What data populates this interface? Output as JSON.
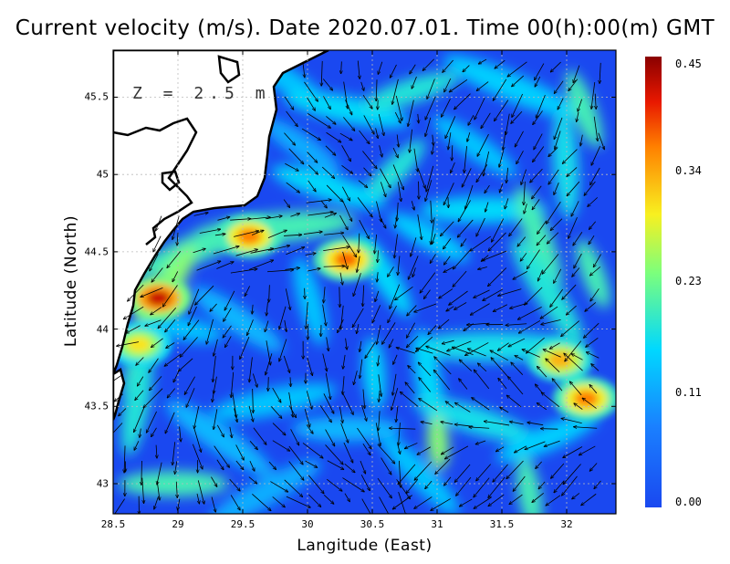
{
  "title": "Current velocity (m/s). Date 2020.07.01. Time 00(h):00(m) GMT",
  "depth_label": "Z = 2.5 m",
  "xlabel": "Langitude (East)",
  "ylabel": "Latitude (North)",
  "x_ticks": [
    "28.5",
    "29",
    "29.5",
    "30",
    "30.5",
    "31",
    "31.5",
    "32"
  ],
  "y_ticks": [
    "43",
    "43.5",
    "44",
    "44.5",
    "45",
    "45.5"
  ],
  "colorbar_ticks": [
    "0.45",
    "0.34",
    "0.23",
    "0.11",
    "0.00"
  ],
  "colors": {
    "low": "#1a48f0",
    "mid_low": "#00c8ff",
    "mid": "#f0f020",
    "high": "#ff5000",
    "max": "#9a0000",
    "land": "#ffffff",
    "coast": "#000000"
  },
  "chart_data": {
    "type": "heatmap",
    "quantity": "Current velocity (m/s)",
    "date": "2020.07.01",
    "time": "00(h):00(m) GMT",
    "depth_m": 2.5,
    "xlim": [
      28.5,
      32.4
    ],
    "ylim": [
      42.8,
      45.8
    ],
    "value_range": [
      0.0,
      0.45
    ],
    "grid": true,
    "hotspots": [
      {
        "lon": 28.85,
        "lat": 44.2,
        "value": 0.42
      },
      {
        "lon": 29.55,
        "lat": 44.6,
        "value": 0.36
      },
      {
        "lon": 30.3,
        "lat": 44.45,
        "value": 0.37
      },
      {
        "lon": 32.15,
        "lat": 43.55,
        "value": 0.36
      },
      {
        "lon": 31.95,
        "lat": 43.8,
        "value": 0.33
      },
      {
        "lon": 28.7,
        "lat": 43.9,
        "value": 0.3
      }
    ]
  }
}
